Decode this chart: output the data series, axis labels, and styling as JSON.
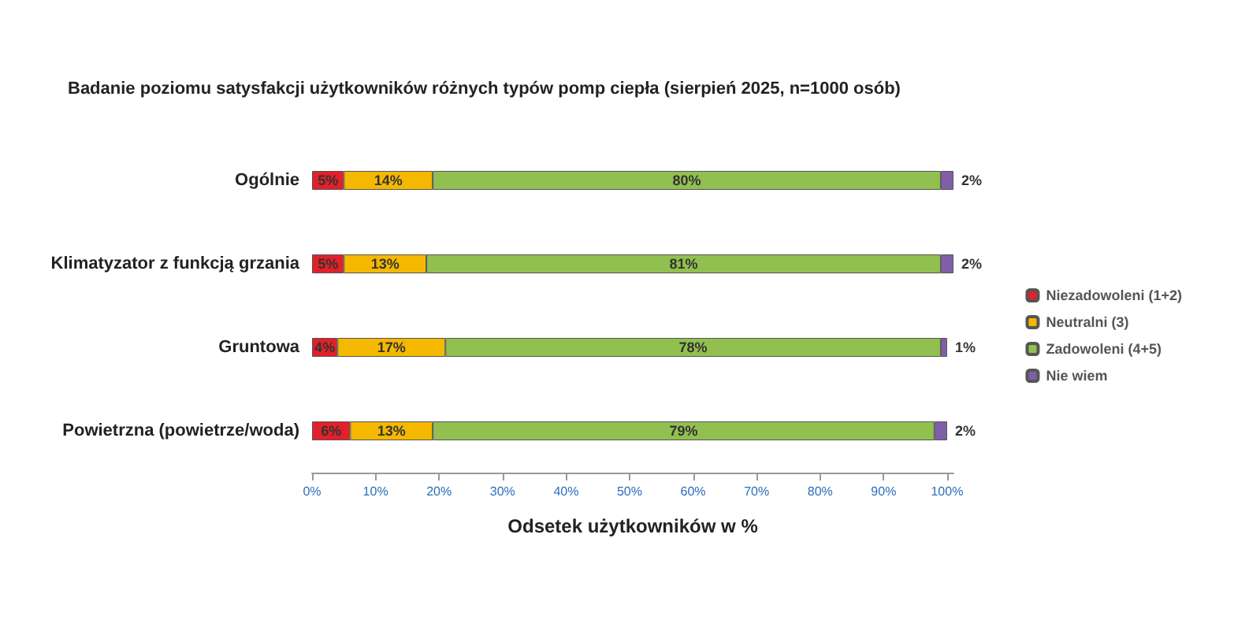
{
  "chart_data": {
    "type": "bar",
    "orientation": "horizontal",
    "stacked": true,
    "title": "Badanie poziomu satysfakcji użytkowników różnych typów pomp ciepła (sierpień 2025, n=1000 osób)",
    "xlabel": "Odsetek użytkowników w %",
    "categories": [
      "Ogólnie",
      "Klimatyzator z funkcją grzania",
      "Gruntowa",
      "Powietrzna (powietrze/woda)"
    ],
    "series": [
      {
        "name": "Niezadowoleni (1+2)",
        "color": "#e3202a",
        "values": [
          5,
          5,
          4,
          6
        ],
        "value_labels": [
          "5%",
          "5%",
          "4%",
          "6%"
        ]
      },
      {
        "name": "Neutralni (3)",
        "color": "#f5b800",
        "values": [
          14,
          13,
          17,
          13
        ],
        "value_labels": [
          "14%",
          "13%",
          "17%",
          "13%"
        ]
      },
      {
        "name": "Zadowoleni (4+5)",
        "color": "#92c050",
        "values": [
          80,
          81,
          78,
          79
        ],
        "value_labels": [
          "80%",
          "81%",
          "78%",
          "79%"
        ]
      },
      {
        "name": "Nie wiem",
        "color": "#7f5fa8",
        "values": [
          2,
          2,
          1,
          2
        ],
        "value_labels": [
          "2%",
          "2%",
          "1%",
          "2%"
        ]
      }
    ],
    "xlim": [
      0,
      101
    ],
    "xticks": [
      {
        "value": 0,
        "label": "0%"
      },
      {
        "value": 10,
        "label": "10%"
      },
      {
        "value": 20,
        "label": "20%"
      },
      {
        "value": 30,
        "label": "30%"
      },
      {
        "value": 40,
        "label": "40%"
      },
      {
        "value": 50,
        "label": "50%"
      },
      {
        "value": 60,
        "label": "60%"
      },
      {
        "value": 70,
        "label": "70%"
      },
      {
        "value": 80,
        "label": "80%"
      },
      {
        "value": 90,
        "label": "90%"
      },
      {
        "value": 100,
        "label": "100%"
      }
    ],
    "grid": false,
    "legend": "right"
  }
}
